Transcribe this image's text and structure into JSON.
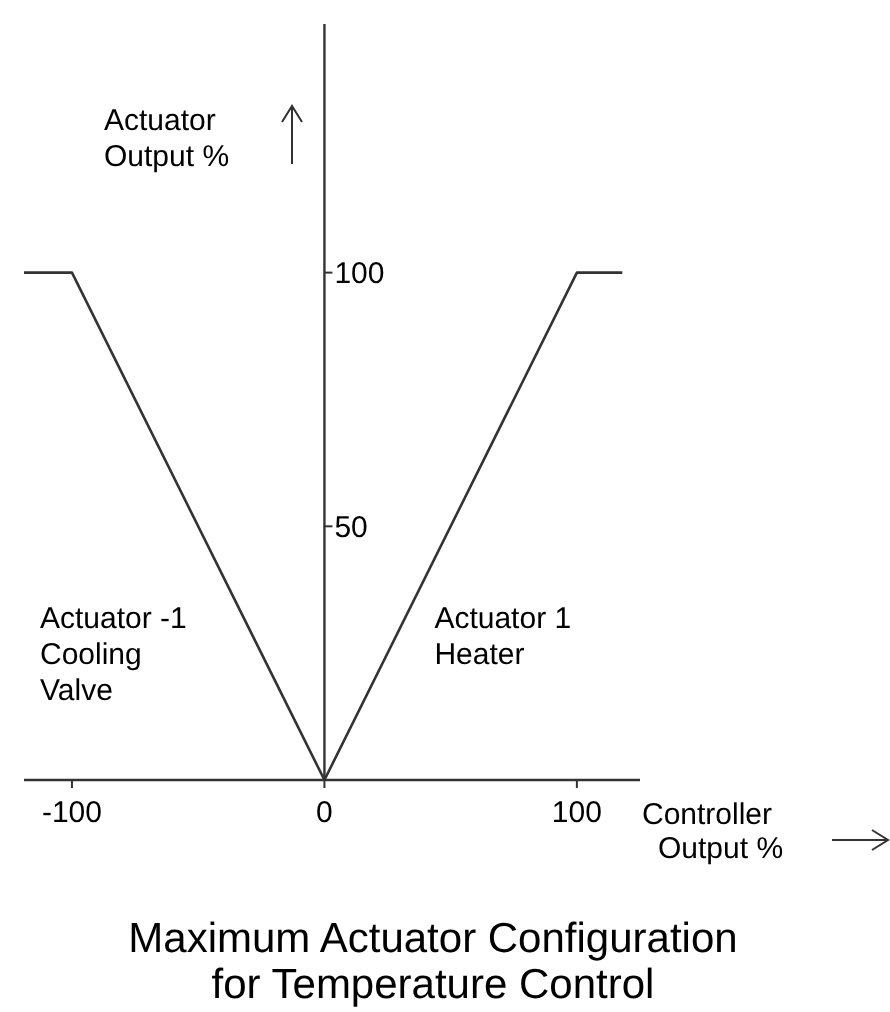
{
  "chart_data": {
    "type": "line",
    "title": "Maximum Actuator Configuration\nfor Temperature Control",
    "xlabel": "Controller Output %",
    "ylabel": "Actuator Output %",
    "xlim": [
      -119,
      125
    ],
    "ylim": [
      0,
      149
    ],
    "xticks": [
      -100,
      0,
      100
    ],
    "yticks": [
      {
        "value": 0,
        "label": null
      },
      50,
      100
    ],
    "series": [
      {
        "name": "Actuator -1\nCooling\nValve",
        "color": "#333333",
        "x": [
          -119,
          -100,
          0
        ],
        "values": [
          100,
          100,
          0
        ]
      },
      {
        "name": "Actuator 1\nHeater",
        "color": "#333333",
        "x": [
          0,
          100,
          118
        ],
        "values": [
          0,
          100,
          100
        ]
      }
    ],
    "grid": false,
    "marker": "none",
    "line_style": "solid"
  }
}
